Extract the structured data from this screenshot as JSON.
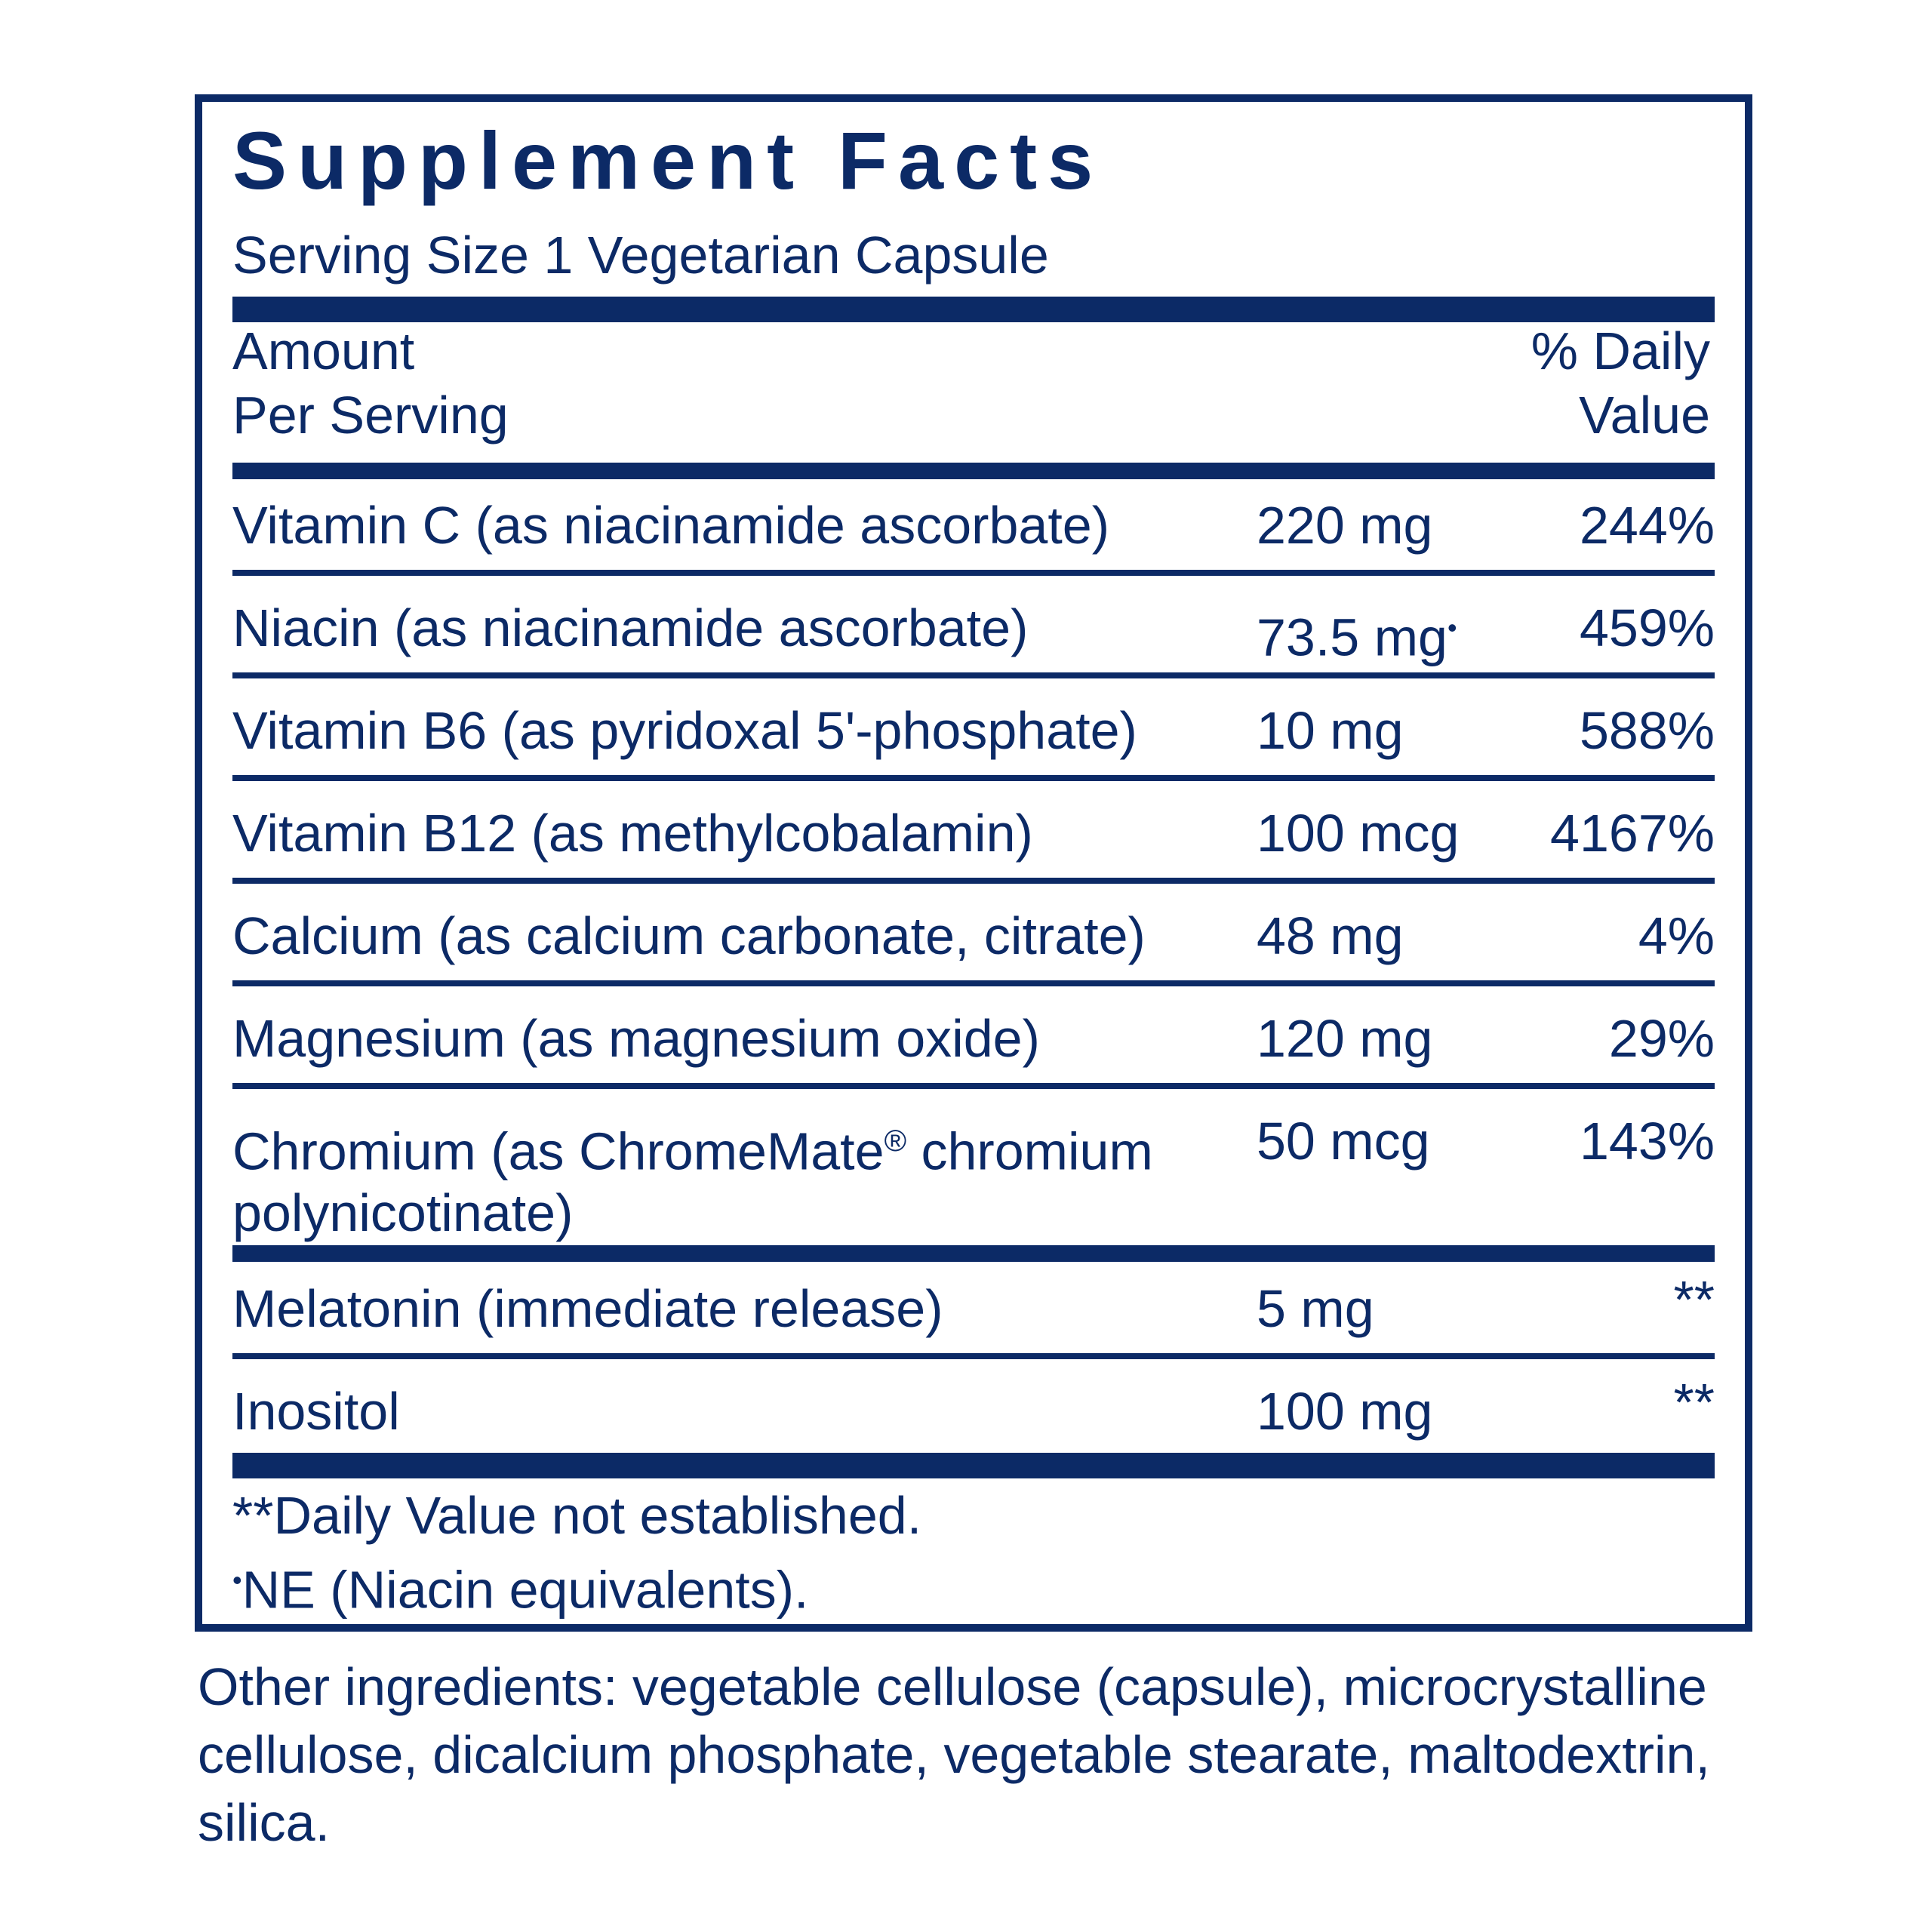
{
  "title": "Supplement Facts",
  "serving_size": "Serving Size 1 Vegetarian Capsule",
  "header": {
    "amount_line1": "Amount",
    "amount_line2": "Per Serving",
    "dv_line1": "% Daily",
    "dv_line2": "Value"
  },
  "nutrients": [
    {
      "name": "Vitamin C (as niacinamide ascorbate)",
      "amount": "220 mg",
      "dv": "244%"
    },
    {
      "name": "Niacin (as niacinamide ascorbate)",
      "amount": "73.5 mg",
      "amount_mark": "•",
      "dv": "459%"
    },
    {
      "name": "Vitamin B6 (as pyridoxal 5'-phosphate)",
      "amount": "10 mg",
      "dv": "588%"
    },
    {
      "name": "Vitamin B12 (as methylcobalamin)",
      "amount": "100 mcg",
      "dv": "4167%"
    },
    {
      "name": "Calcium (as calcium carbonate, citrate)",
      "amount": "48 mg",
      "dv": "4%"
    },
    {
      "name": "Magnesium (as magnesium oxide)",
      "amount": "120 mg",
      "dv": "29%"
    },
    {
      "name_part1": "Chromium (as ChromeMate",
      "name_reg": "®",
      "name_part2": " chromium",
      "name_line2": "polynicotinate)",
      "amount": "50 mcg",
      "dv": "143%"
    }
  ],
  "other_nutrients": [
    {
      "name": "Melatonin (immediate release)",
      "amount": "5 mg",
      "dv": "**"
    },
    {
      "name": "Inositol",
      "amount": "100 mg",
      "dv": "**"
    }
  ],
  "footnotes": {
    "dv_note": "**Daily Value not established.",
    "ne_mark": "•",
    "ne_note": "NE (Niacin equivalents)."
  },
  "other_ingredients": "Other ingredients: vegetable cellulose (capsule), microcrystalline cellulose, dicalcium phosphate, vegetable stearate, maltodextrin, silica.",
  "colors": {
    "ink": "#0c2a66",
    "background": "#ffffff"
  }
}
